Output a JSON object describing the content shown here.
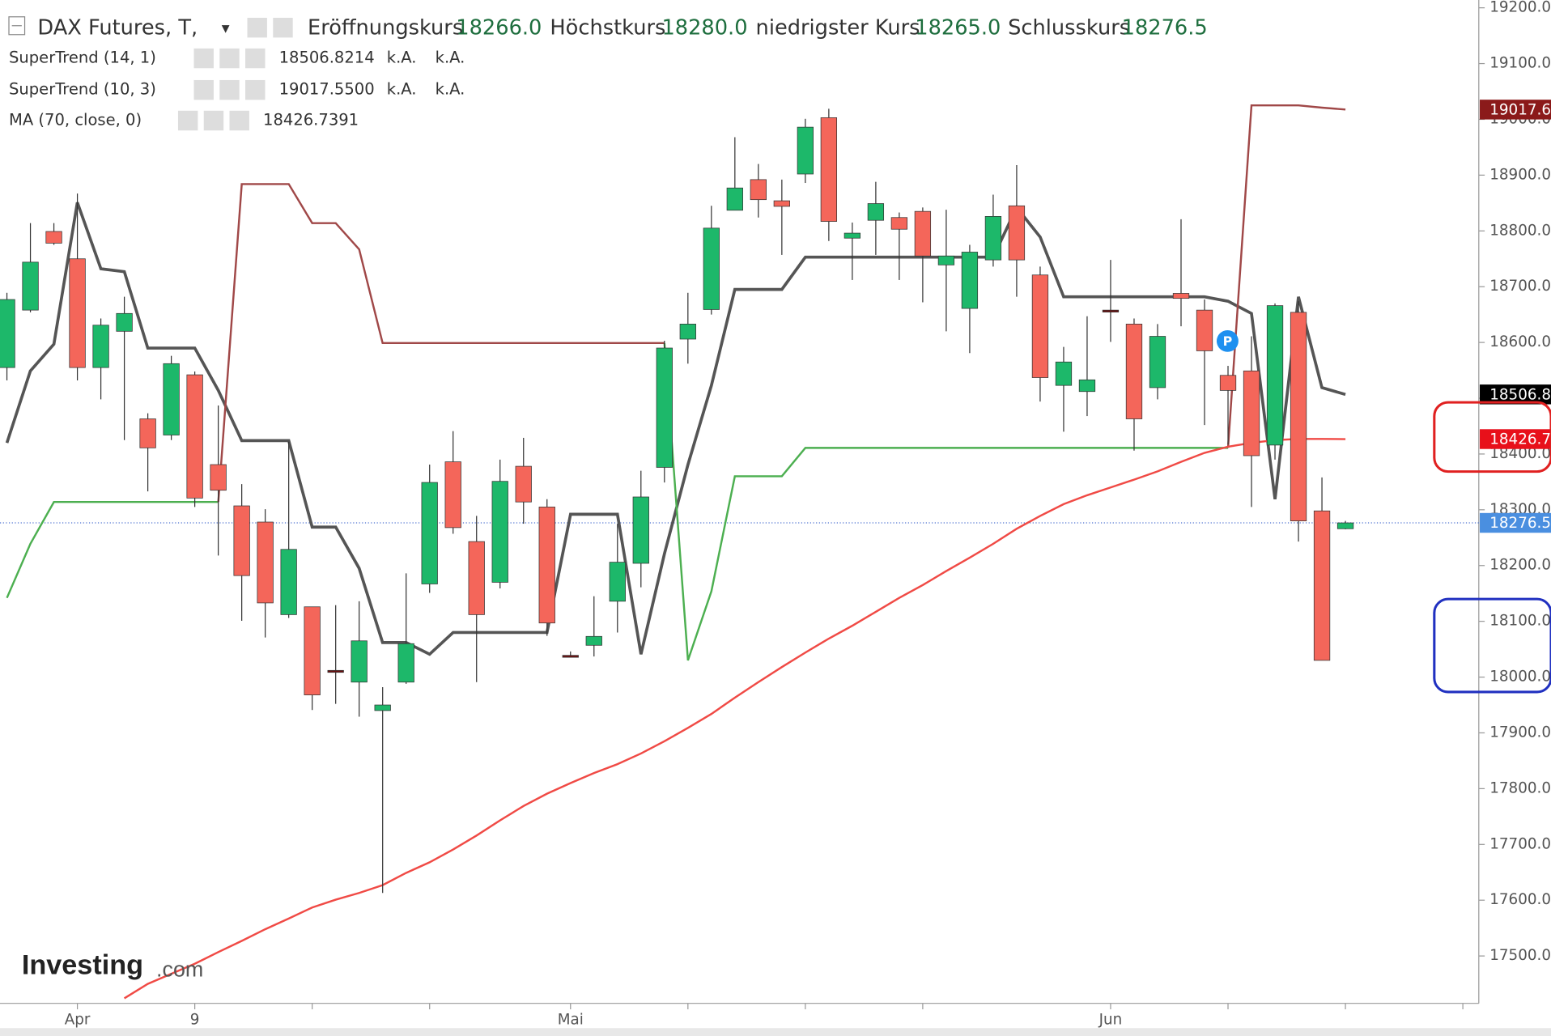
{
  "chart_data": {
    "type": "candlestick",
    "title": "DAX Futures, T,",
    "fields": [
      {
        "label": "Eröffnungskurs",
        "value": "18266.0"
      },
      {
        "label": "Höchstkurs",
        "value": "18280.0"
      },
      {
        "label": "niedrigster Kurs",
        "value": "18265.0"
      },
      {
        "label": "Schlusskurs",
        "value": "18276.5"
      }
    ],
    "indicators": [
      {
        "name": "SuperTrend (14, 1)",
        "value": "18506.8214",
        "extra": [
          "k.A.",
          "k.A."
        ],
        "color": "#000000"
      },
      {
        "name": "SuperTrend (10, 3)",
        "value": "19017.5500",
        "extra": [
          "k.A.",
          "k.A."
        ],
        "color": "#8b0000"
      },
      {
        "name": "MA (70, close, 0)",
        "value": "18426.7391",
        "color": "#e8101a"
      }
    ],
    "categories": [
      null,
      null,
      null,
      "Apr",
      null,
      null,
      null,
      null,
      "9",
      null,
      null,
      null,
      null,
      null,
      null,
      null,
      null,
      null,
      null,
      null,
      null,
      null,
      null,
      null,
      "Mai",
      null,
      null,
      null,
      null,
      null,
      null,
      null,
      null,
      null,
      null,
      null,
      null,
      null,
      null,
      null,
      null,
      null,
      null,
      null,
      null,
      null,
      null,
      "Jun",
      null,
      null,
      null,
      null,
      null,
      null,
      null,
      null,
      null,
      null
    ],
    "open": [
      18555,
      18658,
      18799,
      18750,
      18555,
      18620,
      18463,
      18434,
      18542,
      18381,
      18307,
      18278,
      18112,
      18126,
      18012,
      17991,
      17940,
      17991,
      18167,
      18386,
      18243,
      18170,
      18378,
      18305,
      18039,
      18057,
      18136,
      18204,
      18376,
      18606,
      18659,
      18837,
      18892,
      18854,
      18902,
      19003,
      18787,
      18819,
      18824,
      18835,
      18739,
      18661,
      18748,
      18845,
      18721,
      18523,
      18512,
      18658,
      18633,
      18519,
      18688,
      18658,
      18541,
      18549,
      18416,
      18654,
      18298,
      18266
    ],
    "high": [
      18689,
      18814,
      18814,
      18867,
      18643,
      18682,
      18473,
      18576,
      18548,
      18487,
      18346,
      18301,
      18422,
      18126,
      18129,
      18136,
      17982,
      18186,
      18381,
      18441,
      18289,
      18390,
      18429,
      18319,
      18046,
      18145,
      18275,
      18370,
      18603,
      18689,
      18845,
      18968,
      18920,
      18892,
      19001,
      19019,
      18815,
      18888,
      18833,
      18842,
      18838,
      18775,
      18865,
      18918,
      18736,
      18592,
      18647,
      18748,
      18643,
      18633,
      18821,
      18677,
      18558,
      18611,
      18670,
      18674,
      18358,
      18280
    ],
    "low": [
      18532,
      18654,
      18775,
      18532,
      18498,
      18425,
      18333,
      18425,
      18305,
      18218,
      18101,
      18071,
      18106,
      17941,
      17952,
      17929,
      17613,
      17988,
      18151,
      18257,
      17991,
      18159,
      18275,
      18074,
      18035,
      18037,
      18080,
      18161,
      18349,
      18562,
      18650,
      18837,
      18824,
      18757,
      18886,
      18782,
      18712,
      18757,
      18712,
      18672,
      18620,
      18581,
      18736,
      18682,
      18494,
      18440,
      18468,
      18601,
      18406,
      18498,
      18629,
      18452,
      18417,
      18305,
      18390,
      18243,
      18030,
      18265
    ],
    "close": [
      18677,
      18744,
      18778,
      18555,
      18631,
      18652,
      18411,
      18562,
      18321,
      18335,
      18182,
      18133,
      18229,
      17968,
      18012,
      18065,
      17950,
      18060,
      18349,
      18268,
      18112,
      18351,
      18314,
      18097,
      18039,
      18073,
      18206,
      18323,
      18590,
      18633,
      18805,
      18877,
      18856,
      18844,
      18986,
      18817,
      18796,
      18849,
      18803,
      18755,
      18755,
      18762,
      18826,
      18748,
      18537,
      18565,
      18533,
      18658,
      18463,
      18611,
      18679,
      18585,
      18514,
      18397,
      18666,
      18280,
      18030,
      18276.5
    ],
    "up_color": "#1db86a",
    "down_color": "#f4665a",
    "doji_color": "#6b1010",
    "lines": [
      {
        "color": "#555555",
        "values": [
          18420,
          18549,
          18597,
          18851,
          18732,
          18727,
          18590,
          18590,
          18590,
          18514,
          18424,
          18424,
          18424,
          18269,
          18269,
          18195,
          18062,
          18062,
          18041,
          18080,
          18080,
          18080,
          18080,
          18080,
          18292,
          18292,
          18292,
          18041,
          18221,
          18381,
          18523,
          18695,
          18695,
          18695,
          18753,
          18753,
          18753,
          18753,
          18753,
          18753,
          18753,
          18753,
          18753,
          18842,
          18789,
          18682,
          18682,
          18682,
          18682,
          18682,
          18682,
          18682,
          18674,
          18652,
          18319,
          18682,
          18519,
          18506.8214
        ]
      },
      {
        "color": "#4caf50",
        "values": [
          18142,
          18239,
          18314,
          18314,
          18314,
          18314,
          18314,
          18314,
          18314,
          18314,
          null,
          null,
          null,
          null,
          null,
          null,
          null,
          null,
          null,
          null,
          null,
          null,
          null,
          null,
          null,
          null,
          null,
          null,
          18599,
          18030,
          18154,
          18360,
          18360,
          18360,
          18411,
          18411,
          18411,
          18411,
          18411,
          18411,
          18411,
          18411,
          18411,
          18411,
          18411,
          18411,
          18411,
          18411,
          18411,
          18411,
          18411,
          18411,
          18411,
          null,
          null,
          null,
          null,
          null
        ]
      },
      {
        "color": "#a04848",
        "values": [
          null,
          null,
          null,
          null,
          null,
          null,
          null,
          null,
          null,
          18314,
          18884,
          18884,
          18884,
          18814,
          18814,
          18767,
          18599,
          18599,
          18599,
          18599,
          18599,
          18599,
          18599,
          18599,
          18599,
          18599,
          18599,
          18599,
          18599,
          null,
          null,
          null,
          null,
          null,
          null,
          null,
          null,
          null,
          null,
          null,
          null,
          null,
          null,
          null,
          null,
          null,
          null,
          null,
          null,
          null,
          null,
          null,
          18411,
          19025,
          19025,
          19025,
          19021,
          19017.55
        ]
      },
      {
        "color": "#f04a45",
        "values": [
          null,
          null,
          null,
          null,
          null,
          17424,
          17450,
          17468,
          17486,
          17507,
          17527,
          17548,
          17567,
          17587,
          17601,
          17613,
          17627,
          17649,
          17668,
          17691,
          17716,
          17743,
          17769,
          17791,
          17810,
          17828,
          17844,
          17863,
          17885,
          17909,
          17934,
          17963,
          17991,
          18018,
          18044,
          18069,
          18092,
          18117,
          18142,
          18165,
          18190,
          18214,
          18239,
          18266,
          18289,
          18310,
          18326,
          18340,
          18354,
          18369,
          18386,
          18402,
          18413,
          18420,
          18425,
          18427,
          18427,
          18426.7391
        ]
      }
    ],
    "price_labels": [
      {
        "value": 19017.55,
        "label": "19017.6",
        "color": "#8b1a1a"
      },
      {
        "value": 18506.8214,
        "label": "18506.8",
        "color": "#000000"
      },
      {
        "value": 18426.7391,
        "label": "18426.7",
        "color": "#e8101a"
      },
      {
        "value": 18276.5,
        "label": "18276.5",
        "color": "#4a8fe0"
      }
    ],
    "ylim": [
      17415,
      19214
    ],
    "yticks": [
      {
        "value": 17500,
        "label": "17500.0"
      },
      {
        "value": 17600,
        "label": "17600.0"
      },
      {
        "value": 17700,
        "label": "17700.0"
      },
      {
        "value": 17800,
        "label": "17800.0"
      },
      {
        "value": 17900,
        "label": "17900.0"
      },
      {
        "value": 18000,
        "label": "18000.0"
      },
      {
        "value": 18100,
        "label": "18100.0"
      },
      {
        "value": 18200,
        "label": "18200.0"
      },
      {
        "value": 18300,
        "label": "18300.0"
      },
      {
        "value": 18400,
        "label": "18400.0"
      },
      {
        "value": 18500,
        "label": "18500.0"
      },
      {
        "value": 18600,
        "label": "18600.0"
      },
      {
        "value": 18700,
        "label": "18700.0"
      },
      {
        "value": 18800,
        "label": "18800.0"
      },
      {
        "value": 18900,
        "label": "18900.0"
      },
      {
        "value": 19000,
        "label": "19000.0"
      },
      {
        "value": 19100,
        "label": "19100.0"
      },
      {
        "value": 19200,
        "label": "19200.0"
      }
    ],
    "logo": {
      "main": "Investing",
      "suffix": ".com"
    }
  }
}
